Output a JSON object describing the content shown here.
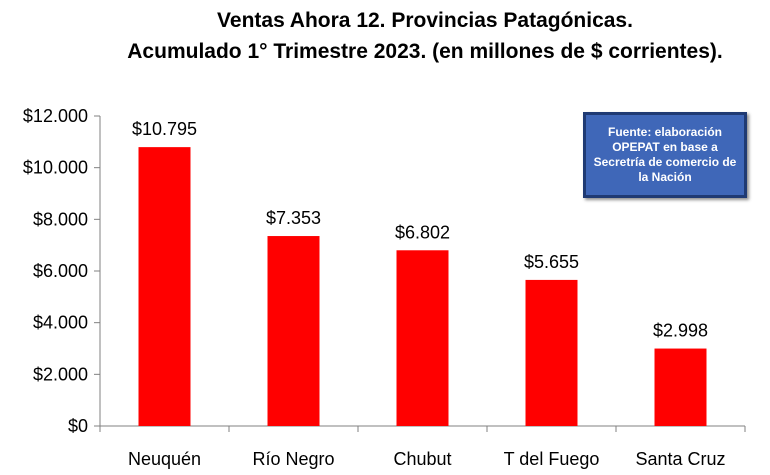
{
  "chart_data": {
    "type": "bar",
    "title": "Ventas Ahora 12. Provincias Patagónicas.",
    "subtitle": "Acumulado 1° Trimestre 2023. (en millones de $ corrientes).",
    "categories": [
      "Neuquén",
      "Río Negro",
      "Chubut",
      "T del Fuego",
      "Santa Cruz"
    ],
    "values": [
      10795,
      7353,
      6802,
      5655,
      2998
    ],
    "data_labels": [
      "$10.795",
      "$7.353",
      "$6.802",
      "$5.655",
      "$2.998"
    ],
    "yticks": [
      0,
      2000,
      4000,
      6000,
      8000,
      10000,
      12000
    ],
    "ytick_labels": [
      "$0",
      "$2.000",
      "$4.000",
      "$6.000",
      "$8.000",
      "$10.000",
      "$12.000"
    ],
    "ylim": [
      0,
      12000
    ],
    "xlabel": "",
    "ylabel": "",
    "grid": false,
    "bar_color": "#ff0000",
    "annotation": "Fuente: elaboración OPEPAT en base a Secretría de comercio de la Nación"
  }
}
